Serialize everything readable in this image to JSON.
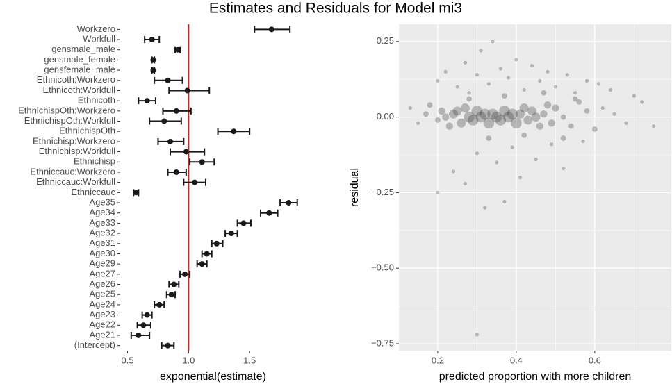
{
  "title": "Estimates and Residuals for Model mi3",
  "chart_data": [
    {
      "type": "dotplot",
      "categories": [
        "Workzero",
        "Workfull",
        "gensmale_male",
        "gensmale_female",
        "gensfemale_male",
        "Ethnicoth:Workzero",
        "Ethnicoth:Workfull",
        "Ethnicoth",
        "EthnichispOth:Workzero",
        "EthnichispOth:Workfull",
        "EthnichispOth",
        "Ethnichisp:Workzero",
        "Ethnichisp:Workfull",
        "Ethnichisp",
        "Ethniccauc:Workzero",
        "Ethniccauc:Workfull",
        "Ethniccauc",
        "Age35",
        "Age34",
        "Age33",
        "Age32",
        "Age31",
        "Age30",
        "Age29",
        "Age27",
        "Age26",
        "Age25",
        "Age24",
        "Age23",
        "Age22",
        "Age21",
        "(Intercept)"
      ],
      "values": [
        1.68,
        0.7,
        0.91,
        0.71,
        0.71,
        0.83,
        0.99,
        0.66,
        0.9,
        0.8,
        1.37,
        0.85,
        0.98,
        1.11,
        0.9,
        1.05,
        0.57,
        1.82,
        1.66,
        1.45,
        1.35,
        1.23,
        1.15,
        1.11,
        0.97,
        0.88,
        0.86,
        0.76,
        0.66,
        0.63,
        0.59,
        0.83
      ],
      "lower": [
        1.54,
        0.64,
        0.89,
        0.7,
        0.7,
        0.72,
        0.84,
        0.59,
        0.79,
        0.68,
        1.24,
        0.75,
        0.85,
        1.01,
        0.83,
        0.96,
        0.55,
        1.75,
        1.59,
        1.4,
        1.3,
        1.19,
        1.11,
        1.07,
        0.93,
        0.84,
        0.82,
        0.72,
        0.62,
        0.58,
        0.53,
        0.78
      ],
      "upper": [
        1.83,
        0.76,
        0.93,
        0.72,
        0.72,
        0.95,
        1.17,
        0.73,
        1.02,
        0.94,
        1.5,
        0.96,
        1.13,
        1.21,
        0.98,
        1.14,
        0.59,
        1.89,
        1.73,
        1.51,
        1.4,
        1.28,
        1.19,
        1.15,
        1.01,
        0.92,
        0.89,
        0.8,
        0.7,
        0.69,
        0.68,
        0.88
      ],
      "color": "#1a1a1a",
      "xlim": [
        0.44,
        1.96
      ],
      "xticks": [
        0.5,
        {
          "value": 1,
          "label": "1.0"
        },
        1.5
      ],
      "xlabel": "exponential(estimate)",
      "vline": 1,
      "vline_color": "#cc2222"
    },
    {
      "type": "scatter",
      "x": [
        0.13,
        0.15,
        0.17,
        0.18,
        0.2,
        0.21,
        0.22,
        0.23,
        0.24,
        0.25,
        0.26,
        0.27,
        0.28,
        0.29,
        0.3,
        0.31,
        0.32,
        0.33,
        0.34,
        0.35,
        0.36,
        0.37,
        0.38,
        0.39,
        0.4,
        0.41,
        0.42,
        0.43,
        0.44,
        0.45,
        0.46,
        0.47,
        0.48,
        0.49,
        0.5,
        0.52,
        0.54,
        0.56,
        0.58,
        0.6,
        0.62,
        0.65,
        0.68,
        0.72,
        0.75,
        0.2,
        0.22,
        0.25,
        0.27,
        0.28,
        0.3,
        0.31,
        0.33,
        0.34,
        0.36,
        0.38,
        0.4,
        0.42,
        0.44,
        0.46,
        0.48,
        0.5,
        0.53,
        0.55,
        0.58,
        0.61,
        0.64,
        0.7,
        0.2,
        0.24,
        0.27,
        0.3,
        0.32,
        0.35,
        0.37,
        0.39,
        0.41,
        0.45,
        0.49,
        0.52,
        0.57,
        0.3,
        0.28,
        0.33,
        0.37,
        0.42,
        0.47,
        0.52,
        0.55
      ],
      "y": [
        0.03,
        -0.02,
        0.01,
        0.04,
        -0.01,
        0.02,
        0.0,
        -0.03,
        0.01,
        0.02,
        -0.02,
        0.03,
        0.0,
        -0.01,
        0.02,
        0.0,
        0.01,
        -0.02,
        0.01,
        0.0,
        -0.01,
        0.02,
        0.0,
        0.01,
        -0.02,
        0.01,
        0.03,
        -0.01,
        0.02,
        0.0,
        -0.03,
        0.01,
        0.04,
        -0.02,
        0.03,
        0.0,
        -0.03,
        0.05,
        0.02,
        -0.04,
        0.03,
        0.01,
        -0.02,
        0.05,
        -0.03,
        0.12,
        0.15,
        0.1,
        0.18,
        0.08,
        0.14,
        0.22,
        0.11,
        0.25,
        0.16,
        0.13,
        0.19,
        0.09,
        0.17,
        0.12,
        0.15,
        0.1,
        0.14,
        0.08,
        0.12,
        0.11,
        0.09,
        0.07,
        -0.25,
        -0.18,
        -0.22,
        -0.12,
        -0.3,
        -0.15,
        -0.28,
        -0.1,
        -0.2,
        -0.14,
        -0.09,
        -0.17,
        -0.08,
        -0.72,
        0.06,
        -0.07,
        0.07,
        -0.06,
        0.08,
        -0.07,
        0.06
      ],
      "size": [
        1,
        1,
        2,
        2,
        2,
        3,
        3,
        3,
        4,
        4,
        4,
        4,
        5,
        5,
        5,
        5,
        5,
        5,
        5,
        5,
        5,
        5,
        5,
        5,
        5,
        4,
        4,
        4,
        4,
        4,
        3,
        3,
        3,
        3,
        3,
        2,
        2,
        2,
        2,
        2,
        1,
        1,
        1,
        1,
        1,
        1,
        1,
        1,
        1,
        1,
        1,
        1,
        1,
        1,
        1,
        1,
        1,
        1,
        1,
        1,
        1,
        1,
        1,
        1,
        1,
        1,
        1,
        1,
        1,
        1,
        1,
        1,
        1,
        1,
        1,
        1,
        1,
        1,
        1,
        1,
        1,
        1,
        2,
        2,
        2,
        2,
        2,
        2,
        2
      ],
      "color": "#333333",
      "xlim": [
        0.101,
        0.795
      ],
      "ylim": [
        -0.773,
        0.307
      ],
      "xticks": [
        0.2,
        0.4,
        0.6
      ],
      "xminor": [
        0.3,
        0.5,
        0.7
      ],
      "yticks": [
        {
          "value": 0.25,
          "label": "0.25"
        },
        {
          "value": 0,
          "label": "0.00"
        },
        {
          "value": -0.25,
          "label": "−0.25"
        },
        {
          "value": -0.5,
          "label": "−0.50"
        },
        {
          "value": -0.75,
          "label": "−0.75"
        }
      ],
      "yminor": [
        0.125,
        -0.125,
        -0.375,
        -0.625
      ],
      "grid": true,
      "xlabel": "predicted proportion with more children",
      "ylabel": "residual"
    }
  ]
}
